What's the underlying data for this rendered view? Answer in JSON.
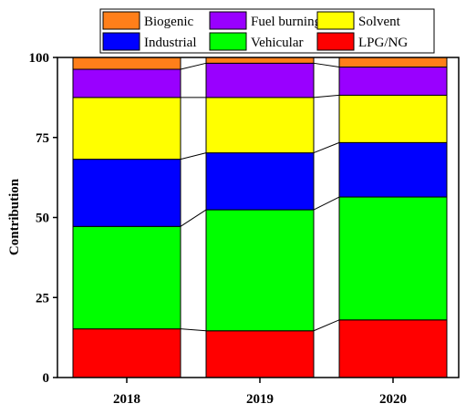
{
  "chart_data": {
    "type": "bar",
    "stacked": true,
    "categories": [
      "2018",
      "2019",
      "2020"
    ],
    "series": [
      {
        "name": "LPG/NG",
        "color": "#ff0000",
        "values": [
          15.2,
          14.6,
          18.0
        ]
      },
      {
        "name": "Vehicular",
        "color": "#00ff00",
        "values": [
          32.0,
          37.8,
          38.4
        ]
      },
      {
        "name": "Industrial",
        "color": "#0000ff",
        "values": [
          21.0,
          17.8,
          17.0
        ]
      },
      {
        "name": "Solvent",
        "color": "#ffff00",
        "values": [
          19.3,
          17.3,
          14.8
        ]
      },
      {
        "name": "Fuel burning",
        "color": "#9900ff",
        "values": [
          8.8,
          10.7,
          8.8
        ]
      },
      {
        "name": "Biogenic",
        "color": "#ff7f1a",
        "values": [
          3.7,
          1.8,
          3.0
        ]
      }
    ],
    "xlabel": "",
    "ylabel": "Contribution",
    "ylim": [
      0,
      100
    ],
    "yticks": [
      "0",
      "25",
      "50",
      "75",
      "100"
    ],
    "legend": {
      "placement": "top",
      "order": [
        "Biogenic",
        "Fuel burning",
        "Solvent",
        "Industrial",
        "Vehicular",
        "LPG/NG"
      ]
    },
    "connector_lines": true,
    "grid": false
  }
}
